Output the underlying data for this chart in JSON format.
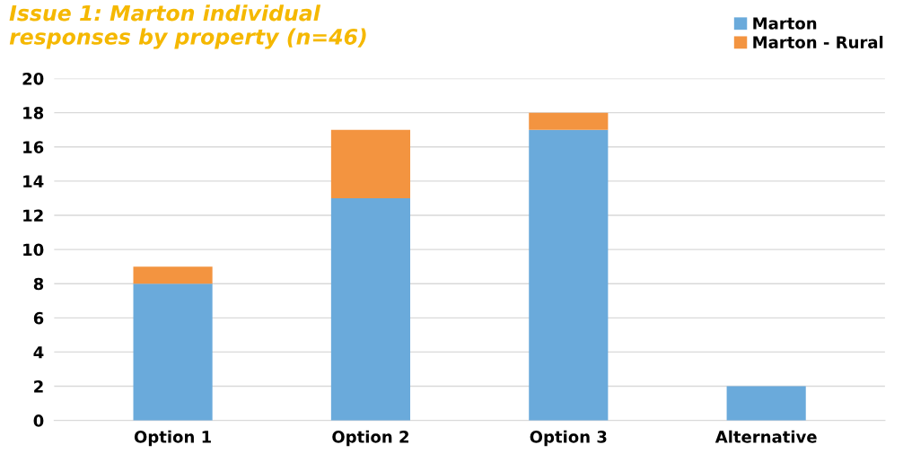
{
  "chart_data": {
    "type": "bar",
    "title": "Issue 1: Marton individual\nresponses by property (n=46)",
    "categories": [
      "Option 1",
      "Option 2",
      "Option 3",
      "Alternative"
    ],
    "series": [
      {
        "name": "Marton",
        "color": "#6aaadb",
        "values": [
          8,
          13,
          17,
          2
        ]
      },
      {
        "name": "Marton - Rural",
        "color": "#f39440",
        "values": [
          1,
          4,
          1,
          0
        ]
      }
    ],
    "stacked": true,
    "ylim": [
      0,
      20
    ],
    "yticks": [
      0,
      2,
      4,
      6,
      8,
      10,
      12,
      14,
      16,
      18,
      20
    ],
    "grid": "y",
    "legend": "top right"
  }
}
